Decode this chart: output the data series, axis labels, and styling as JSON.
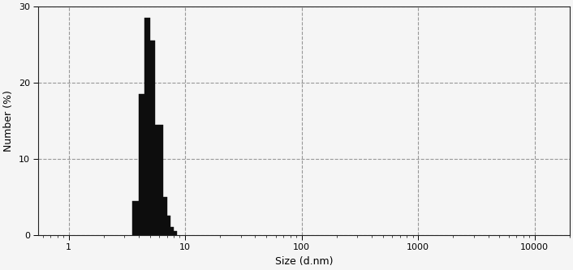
{
  "xlabel": "Size (d.nm)",
  "ylabel": "Number (%)",
  "xlim": [
    0.55,
    20000
  ],
  "ylim": [
    0,
    30
  ],
  "yticks": [
    0,
    10,
    20,
    30
  ],
  "bar_color": "#0d0d0d",
  "bar_edgecolor": "#0d0d0d",
  "background_color": "#f5f5f5",
  "grid_color": "#888888",
  "bins": [
    3.5,
    4.0,
    4.5,
    5.0,
    5.5,
    6.0,
    6.5,
    7.0,
    7.5,
    8.0,
    8.5,
    9.0,
    9.5
  ],
  "heights": [
    4.5,
    18.5,
    28.5,
    25.5,
    14.5,
    14.5,
    5.0,
    2.5,
    1.0,
    0.5,
    0.0,
    0.0,
    0.0
  ],
  "figsize": [
    7.06,
    3.33
  ],
  "dpi": 100
}
